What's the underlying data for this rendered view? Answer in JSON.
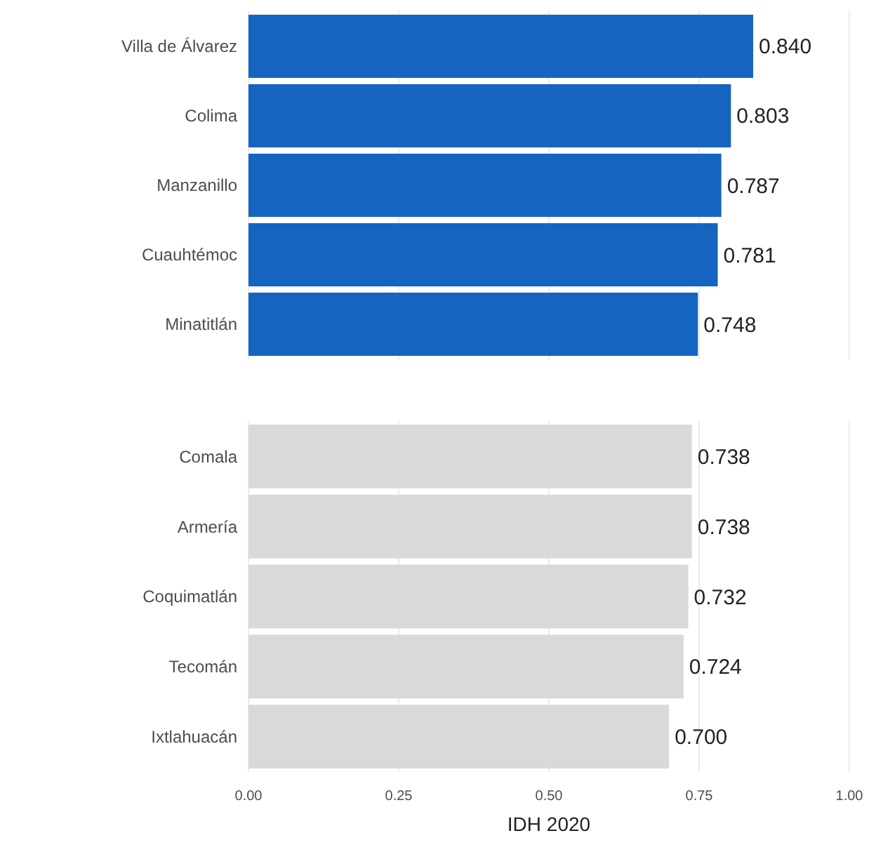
{
  "chart_data": [
    {
      "type": "bar",
      "orientation": "horizontal",
      "categories": [
        "Villa de Álvarez",
        "Colima",
        "Manzanillo",
        "Cuauhtémoc",
        "Minatitlán"
      ],
      "values": [
        0.84,
        0.803,
        0.787,
        0.781,
        0.748
      ],
      "value_labels": [
        "0.840",
        "0.803",
        "0.787",
        "0.781",
        "0.748"
      ],
      "color": "#1565c0",
      "xlim": [
        0,
        1
      ],
      "xticks": [
        0,
        0.25,
        0.5,
        0.75,
        1
      ],
      "grid": "x",
      "tick_labels": "y"
    },
    {
      "type": "bar",
      "orientation": "horizontal",
      "categories": [
        "Comala",
        "Armería",
        "Coquimatlán",
        "Tecomán",
        "Ixtlahuacán"
      ],
      "values": [
        0.738,
        0.738,
        0.732,
        0.724,
        0.7
      ],
      "value_labels": [
        "0.738",
        "0.738",
        "0.732",
        "0.724",
        "0.700"
      ],
      "color": "#d9d9d9",
      "xlim": [
        0,
        1
      ],
      "xticks": [
        {
          "value": 0,
          "label": "0.00"
        },
        {
          "value": 0.25,
          "label": "0.25"
        },
        {
          "value": 0.5,
          "label": "0.50"
        },
        {
          "value": 0.75,
          "label": "0.75"
        },
        {
          "value": 1,
          "label": "1.00"
        }
      ],
      "grid": "x",
      "xlabel": "IDH 2020"
    }
  ]
}
